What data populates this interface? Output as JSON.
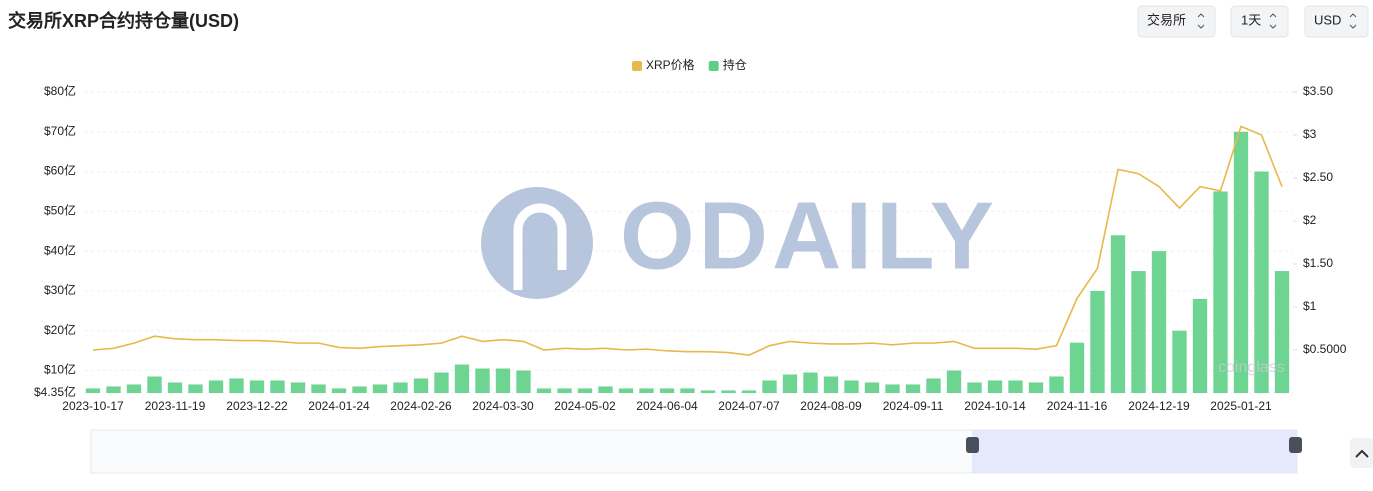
{
  "header": {
    "title": "交易所XRP合约持仓量(USD)",
    "selects": [
      "交易所",
      "1天",
      "USD"
    ]
  },
  "chart_data": {
    "type": "bar",
    "watermarks": [
      "ODAILY",
      "coinglass"
    ],
    "categories": [
      "2023-10-17",
      null,
      null,
      null,
      "2023-11-19",
      null,
      null,
      null,
      "2023-12-22",
      null,
      null,
      null,
      "2024-01-24",
      null,
      null,
      null,
      "2024-02-26",
      null,
      null,
      null,
      "2024-03-30",
      null,
      null,
      null,
      "2024-05-02",
      null,
      null,
      null,
      "2024-06-04",
      null,
      null,
      null,
      "2024-07-07",
      null,
      null,
      null,
      "2024-08-09",
      null,
      null,
      null,
      "2024-09-11",
      null,
      null,
      null,
      "2024-10-14",
      null,
      null,
      null,
      "2024-11-16",
      null,
      null,
      null,
      "2024-12-19",
      null,
      null,
      null,
      "2025-01-21",
      null,
      null
    ],
    "series": [
      {
        "name": "XRP价格",
        "type": "line",
        "axis": "y2",
        "color": "#e8b84a",
        "values": [
          0.5,
          0.52,
          0.58,
          0.66,
          0.63,
          0.62,
          0.62,
          0.61,
          0.61,
          0.6,
          0.58,
          0.58,
          0.53,
          0.52,
          0.54,
          0.55,
          0.56,
          0.58,
          0.66,
          0.6,
          0.62,
          0.6,
          0.5,
          0.52,
          0.51,
          0.52,
          0.5,
          0.51,
          0.49,
          0.48,
          0.48,
          0.47,
          0.44,
          0.55,
          0.6,
          0.58,
          0.57,
          0.57,
          0.58,
          0.56,
          0.58,
          0.58,
          0.6,
          0.52,
          0.52,
          0.52,
          0.51,
          0.55,
          1.1,
          1.45,
          2.6,
          2.55,
          2.4,
          2.15,
          2.4,
          2.35,
          3.1,
          3.0,
          2.4
        ]
      },
      {
        "name": "持仓",
        "type": "bar",
        "axis": "y",
        "color": "#5ecf86",
        "values": [
          5.5,
          6.0,
          6.5,
          8.5,
          7.0,
          6.5,
          7.5,
          8.0,
          7.5,
          7.5,
          7.0,
          6.5,
          5.5,
          6.0,
          6.5,
          7.0,
          8.0,
          9.5,
          11.5,
          10.5,
          10.5,
          10.0,
          5.5,
          5.5,
          5.5,
          6.0,
          5.5,
          5.5,
          5.5,
          5.5,
          5.0,
          5.0,
          5.0,
          7.5,
          9.0,
          9.5,
          8.5,
          7.5,
          7.0,
          6.5,
          6.5,
          8.0,
          10.0,
          7.0,
          7.5,
          7.5,
          7.0,
          8.5,
          17.0,
          30.0,
          44.0,
          35.0,
          40.0,
          20.0,
          28.0,
          55.0,
          70.0,
          60.0,
          35.0
        ]
      }
    ],
    "ylim": [
      4.35,
      80
    ],
    "yticks": [
      {
        "value": 4.35,
        "label": "$4.35亿"
      },
      {
        "value": 10,
        "label": "$10亿"
      },
      {
        "value": 20,
        "label": "$20亿"
      },
      {
        "value": 30,
        "label": "$30亿"
      },
      {
        "value": 40,
        "label": "$40亿"
      },
      {
        "value": 50,
        "label": "$50亿"
      },
      {
        "value": 60,
        "label": "$60亿"
      },
      {
        "value": 70,
        "label": "$70亿"
      },
      {
        "value": 80,
        "label": "$80亿"
      }
    ],
    "y2lim": [
      0,
      3.5
    ],
    "y2ticks": [
      {
        "value": 0.5,
        "label": "$0.5000"
      },
      {
        "value": 1,
        "label": "$1"
      },
      {
        "value": 1.5,
        "label": "$1.50"
      },
      {
        "value": 2,
        "label": "$2"
      },
      {
        "value": 2.5,
        "label": "$2.50"
      },
      {
        "value": 3,
        "label": "$3"
      },
      {
        "value": 3.5,
        "label": "$3.50"
      }
    ],
    "grid": true
  }
}
